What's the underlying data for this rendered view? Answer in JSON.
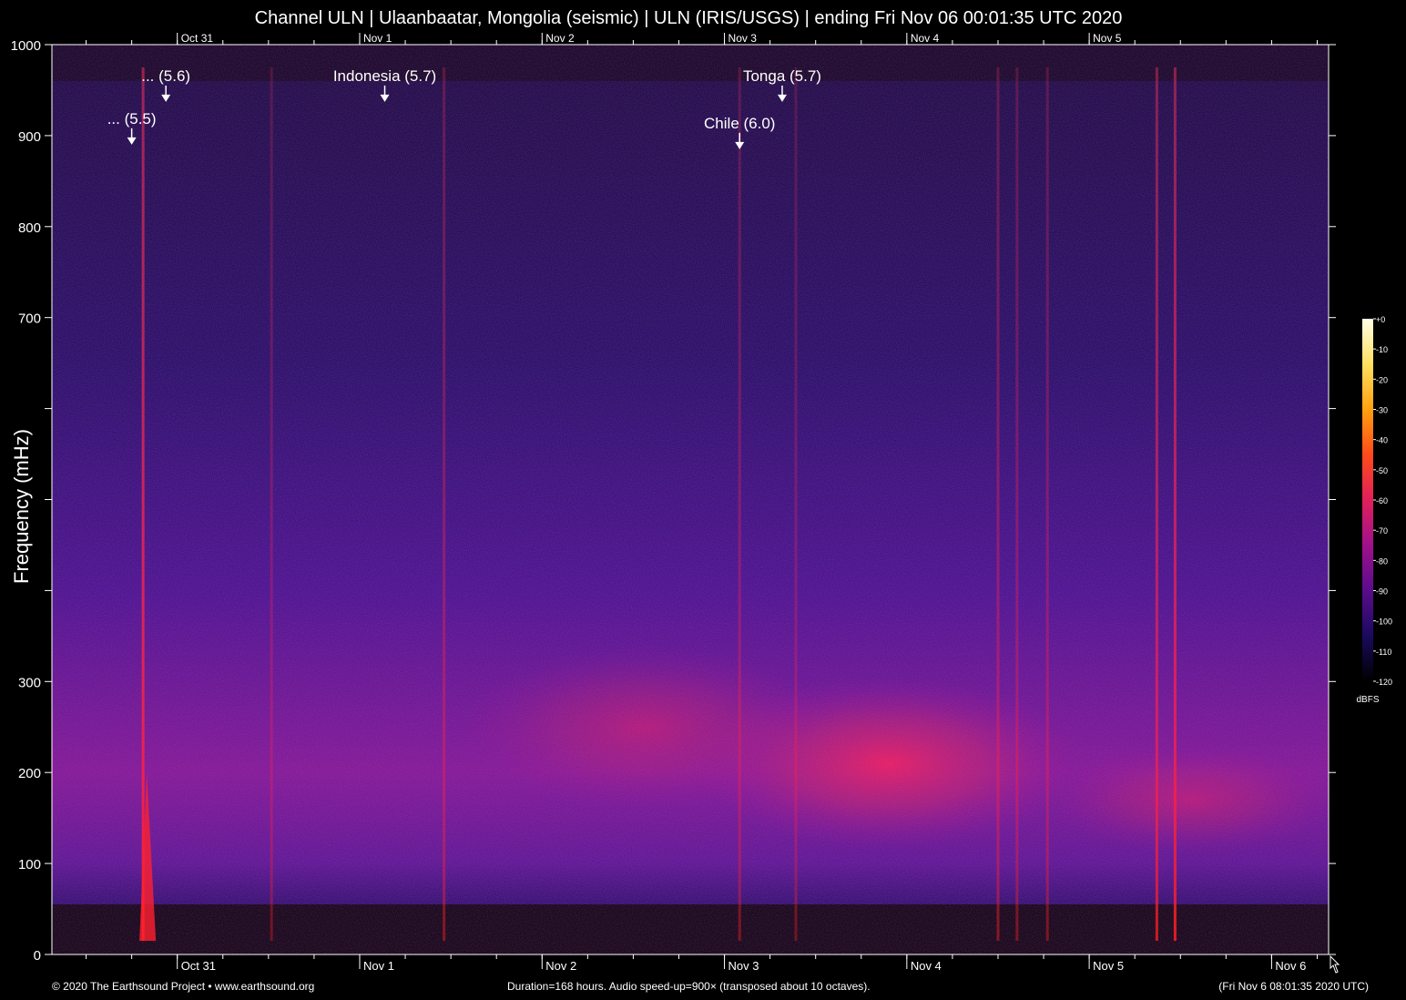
{
  "title": "Channel ULN | Ulaanbaatar, Mongolia (seismic) | ULN (IRIS/USGS) | ending Fri Nov 06 00:01:35 UTC 2020",
  "chart_data": {
    "type": "heatmap",
    "ylabel": "Frequency (mHz)",
    "ylim": [
      0,
      1000
    ],
    "y_ticks": [
      {
        "value": 0,
        "label": "0"
      },
      {
        "value": 100,
        "label": "100"
      },
      {
        "value": 200,
        "label": "200"
      },
      {
        "value": 300,
        "label": "300"
      },
      {
        "value": 400,
        "label": ""
      },
      {
        "value": 500,
        "label": ""
      },
      {
        "value": 600,
        "label": ""
      },
      {
        "value": 700,
        "label": "700"
      },
      {
        "value": 800,
        "label": "800"
      },
      {
        "value": 900,
        "label": "900"
      },
      {
        "value": 1000,
        "label": "1000"
      }
    ],
    "xlim_hours": [
      0,
      168
    ],
    "x_day_ticks": [
      {
        "hour": 16.5,
        "label": "Oct 31"
      },
      {
        "hour": 40.5,
        "label": "Nov  1"
      },
      {
        "hour": 64.5,
        "label": "Nov  2"
      },
      {
        "hour": 88.5,
        "label": "Nov  3"
      },
      {
        "hour": 112.5,
        "label": "Nov  4"
      },
      {
        "hour": 136.5,
        "label": "Nov  5"
      },
      {
        "hour": 160.5,
        "label": "Nov  6"
      }
    ],
    "top_day_labels": [
      "Oct 31",
      "Nov  1",
      "Nov  2",
      "Nov  3",
      "Nov  4",
      "Nov  5"
    ],
    "colorbar": {
      "unit": "dBFS",
      "range": [
        -120,
        0
      ],
      "ticks": [
        "+0",
        "-10",
        "-20",
        "-30",
        "-40",
        "-50",
        "-60",
        "-70",
        "-80",
        "-90",
        "-100",
        "-110",
        "-120"
      ],
      "colors": [
        "#000000",
        "#1a0a5e",
        "#5a0c8c",
        "#a0108c",
        "#e0205a",
        "#ff4a1a",
        "#ffa010",
        "#ffe060",
        "#ffffe8"
      ]
    },
    "annotations": [
      {
        "label": "... (5.5)",
        "hour": 10.5,
        "freq": 890
      },
      {
        "label": "... (5.6)",
        "hour": 15.0,
        "freq": 937
      },
      {
        "label": "Indonesia (5.7)",
        "hour": 43.8,
        "freq": 937
      },
      {
        "label": "Chile (6.0)",
        "hour": 90.5,
        "freq": 885
      },
      {
        "label": "Tonga (5.7)",
        "hour": 96.1,
        "freq": 937
      }
    ],
    "events": [
      {
        "hour": 12.0,
        "strength": 0.95
      },
      {
        "hour": 28.9,
        "strength": 0.35
      },
      {
        "hour": 51.6,
        "strength": 0.45
      },
      {
        "hour": 90.5,
        "strength": 0.4
      },
      {
        "hour": 97.9,
        "strength": 0.35
      },
      {
        "hour": 124.5,
        "strength": 0.45
      },
      {
        "hour": 127.0,
        "strength": 0.4
      },
      {
        "hour": 131.0,
        "strength": 0.4
      },
      {
        "hour": 145.4,
        "strength": 0.75
      },
      {
        "hour": 147.8,
        "strength": 0.85
      }
    ]
  },
  "footer": {
    "left": "© 2020 The Earthsound Project • www.earthsound.org",
    "center": "Duration=168 hours. Audio speed-up=900× (transposed about 10 octaves).",
    "right": "(Fri Nov  6 08:01:35 2020 UTC)"
  }
}
